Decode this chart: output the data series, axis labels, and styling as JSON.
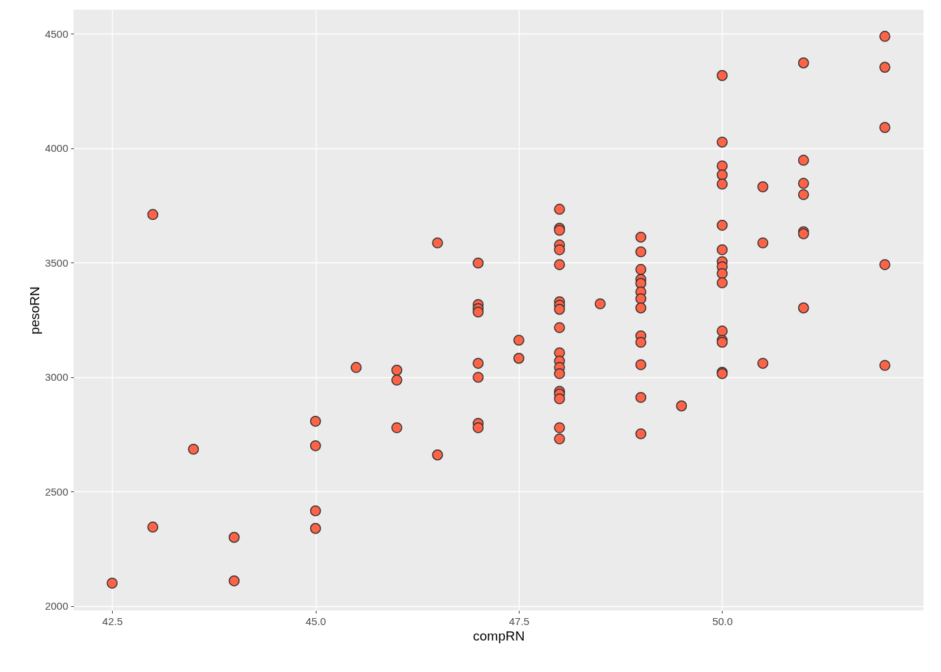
{
  "chart_data": {
    "type": "scatter",
    "xlabel": "compRN",
    "ylabel": "pesoRN",
    "xlim": [
      42.025,
      52.475
    ],
    "ylim": [
      1981,
      4604
    ],
    "xticks": [
      {
        "value": 42.5,
        "label": "42.5"
      },
      {
        "value": 45,
        "label": "45.0"
      },
      {
        "value": 47.5,
        "label": "47.5"
      },
      {
        "value": 50,
        "label": "50.0"
      }
    ],
    "yticks": [
      2000,
      2500,
      3000,
      3500,
      4000,
      4500
    ],
    "grid": true,
    "marker": "circle",
    "series": [
      {
        "color": "#ff6347",
        "x": [
          42.5,
          43,
          43,
          43.5,
          44,
          44,
          45,
          45,
          45,
          45,
          45.5,
          46,
          46,
          46,
          46.5,
          46.5,
          47,
          47,
          47,
          47,
          47,
          47,
          47,
          47,
          47.5,
          47.5,
          48,
          48,
          48,
          48,
          48,
          48,
          48,
          48,
          48,
          48,
          48,
          48,
          48,
          48,
          48,
          48,
          48,
          48,
          48,
          48.5,
          49,
          49,
          49,
          49,
          49,
          49,
          49,
          49,
          49,
          49,
          49,
          49,
          49,
          49.5,
          50,
          50,
          50,
          50,
          50,
          50,
          50,
          50,
          50,
          50,
          50,
          50,
          50,
          50,
          50,
          50,
          50.5,
          50.5,
          50.5,
          51,
          51,
          51,
          51,
          51,
          51,
          51,
          52,
          52,
          52,
          52,
          52
        ],
        "values": [
          2100,
          3710,
          2345,
          2685,
          2300,
          2110,
          2807,
          2700,
          2416,
          2339,
          3042,
          3030,
          2987,
          2779,
          3586,
          2660,
          3498,
          3317,
          3299,
          3284,
          3060,
          2999,
          2798,
          2779,
          3161,
          3082,
          3733,
          3650,
          3641,
          3577,
          3556,
          3491,
          3329,
          3314,
          3296,
          3216,
          3106,
          3070,
          3042,
          3015,
          2938,
          2926,
          2905,
          2779,
          2730,
          3320,
          3611,
          3547,
          3470,
          3427,
          3409,
          3372,
          3342,
          3302,
          3180,
          3152,
          3054,
          2911,
          2752,
          2874,
          4317,
          4026,
          3922,
          3883,
          3843,
          3663,
          3556,
          3504,
          3482,
          3452,
          3412,
          3201,
          3161,
          3152,
          3021,
          3015,
          3831,
          3586,
          3060,
          4372,
          3947,
          3846,
          3797,
          3635,
          3626,
          3302,
          4488,
          4353,
          4090,
          3491,
          3051
        ]
      }
    ]
  }
}
